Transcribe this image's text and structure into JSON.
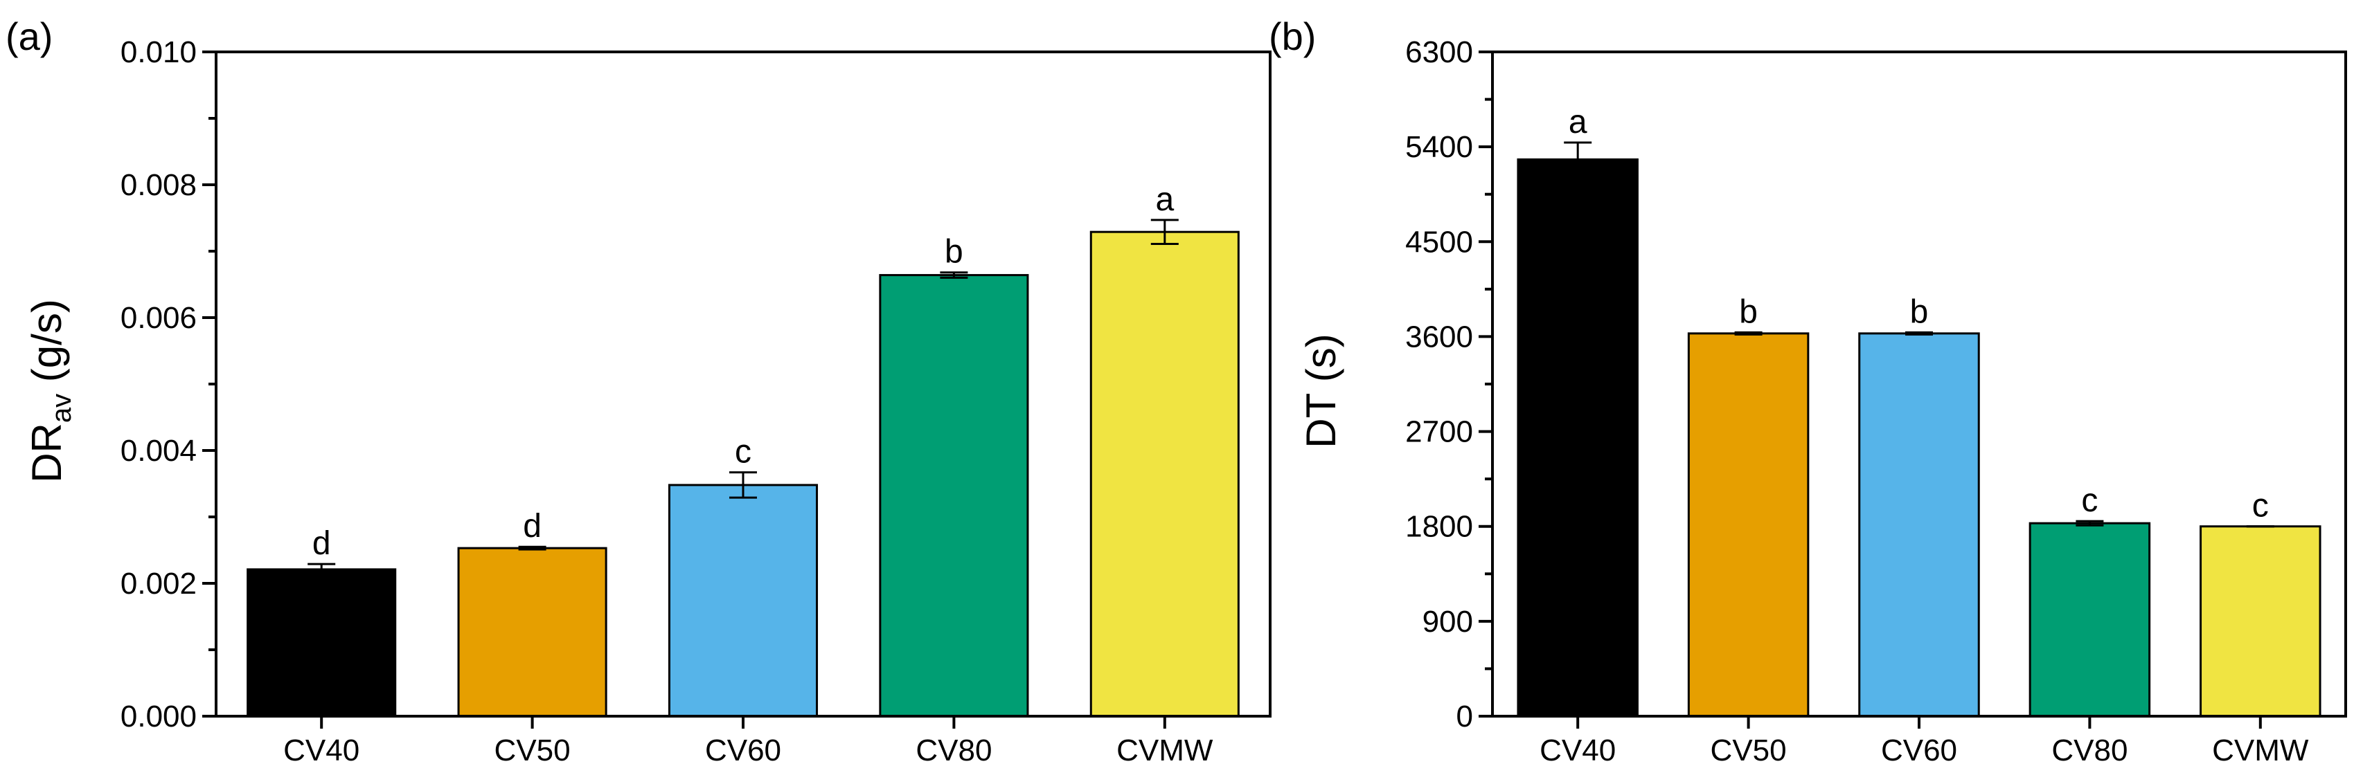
{
  "chart_data": [
    {
      "panel_label": "(a)",
      "type": "bar",
      "categories": [
        "CV40",
        "CV50",
        "CV60",
        "CV80",
        "CVMW"
      ],
      "values": [
        0.00221,
        0.00253,
        0.00348,
        0.00664,
        0.00729
      ],
      "errors": [
        8e-05,
        2e-05,
        0.00019,
        4e-05,
        0.00018
      ],
      "significance": [
        "d",
        "d",
        "c",
        "b",
        "a"
      ],
      "colors": [
        "#000000",
        "#E69F00",
        "#56B4E9",
        "#009E73",
        "#F0E442"
      ],
      "ylabel_main": "DR",
      "ylabel_sub": "av",
      "ylabel_unit": " (g/s)",
      "ylim": [
        0,
        0.01
      ],
      "yticks": [
        0,
        0.002,
        0.004,
        0.006,
        0.008,
        0.01
      ],
      "ytick_labels": [
        "0.000",
        "0.002",
        "0.004",
        "0.006",
        "0.008",
        "0.010"
      ],
      "grid": false
    },
    {
      "panel_label": "(b)",
      "type": "bar",
      "categories": [
        "CV40",
        "CV50",
        "CV60",
        "CV80",
        "CVMW"
      ],
      "values": [
        5280,
        3630,
        3630,
        1830,
        1800
      ],
      "errors": [
        160,
        10,
        10,
        20,
        0
      ],
      "significance": [
        "a",
        "b",
        "b",
        "c",
        "c"
      ],
      "colors": [
        "#000000",
        "#E69F00",
        "#56B4E9",
        "#009E73",
        "#F0E442"
      ],
      "ylabel_main": "DT",
      "ylabel_sub": "",
      "ylabel_unit": " (s)",
      "ylim": [
        0,
        6300
      ],
      "yticks": [
        0,
        900,
        1800,
        2700,
        3600,
        4500,
        5400,
        6300
      ],
      "ytick_labels": [
        "0",
        "900",
        "1800",
        "2700",
        "3600",
        "4500",
        "5400",
        "6300"
      ],
      "grid": false
    }
  ]
}
